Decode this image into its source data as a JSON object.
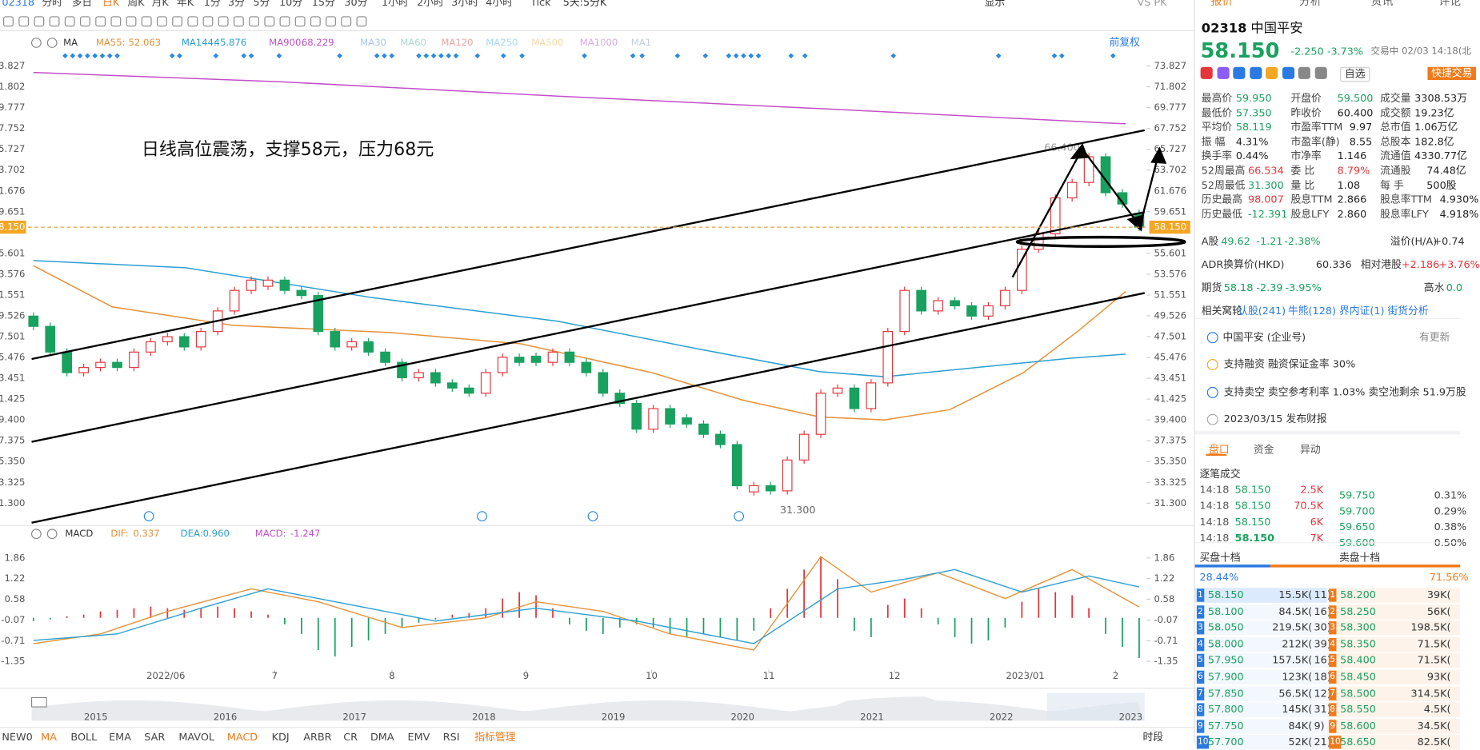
{
  "toolbar": {
    "code": "02318",
    "periods": [
      "分时",
      "多日",
      "日K",
      "周K",
      "月K",
      "年K",
      "1分",
      "3分",
      "5分",
      "10分",
      "15分",
      "30分",
      "1小时",
      "2小时",
      "3小时",
      "4小时",
      "Tick"
    ],
    "multi": "5天:5分K",
    "display": "显示",
    "vs": "VS PK"
  },
  "chart_legend": {
    "type": "MA",
    "restore": "前复权",
    "items": [
      {
        "name": "MA55:",
        "value": "52.063",
        "color": "#e5923a"
      },
      {
        "name": "MA144:",
        "value": "45.876",
        "color": "#2b9fd0"
      },
      {
        "name": "MA900:",
        "value": "68.229",
        "color": "#c150c8"
      },
      {
        "name": "MA30",
        "color": "#a9c4e8"
      },
      {
        "name": "MA60",
        "color": "#a9dcd0"
      },
      {
        "name": "MA120",
        "color": "#f0a0a0"
      },
      {
        "name": "MA250",
        "color": "#a8d8f0"
      },
      {
        "name": "MA500",
        "color": "#f5d8a0"
      },
      {
        "name": "MA1000",
        "color": "#d8a8e8"
      },
      {
        "name": "MA1",
        "color": "#c8d0dc"
      }
    ]
  },
  "chart_data": {
    "type": "candlestick",
    "annotation": "日线高位震荡，支撑58元，压力68元",
    "high_label": "66.400",
    "low_label": "31.300",
    "up_color": "#e5343a",
    "down_color": "#19a15f",
    "xlim": [
      -0.33,
      66.44
    ],
    "xticks": [
      {
        "value": 7.9,
        "label": "2022/06"
      },
      {
        "value": 14.4,
        "label": "7"
      },
      {
        "value": 21.4,
        "label": "8"
      },
      {
        "value": 29.4,
        "label": "9"
      },
      {
        "value": 36.9,
        "label": "10"
      },
      {
        "value": 43.9,
        "label": "11"
      },
      {
        "value": 51.4,
        "label": "12"
      },
      {
        "value": 59.2,
        "label": "2023/01"
      },
      {
        "value": 64.6,
        "label": "2"
      }
    ],
    "ylim": [
      29.58,
      74.82
    ],
    "yticks": [
      73.827,
      71.802,
      69.777,
      67.752,
      65.727,
      63.702,
      61.676,
      59.651,
      55.601,
      53.576,
      51.551,
      49.526,
      47.501,
      45.476,
      43.451,
      41.425,
      {
        "value": 39.4,
        "label": "39.400"
      },
      37.375,
      {
        "value": 35.35,
        "label": "35.350"
      },
      33.325,
      {
        "value": 31.3,
        "label": "31.300"
      }
    ],
    "last_price": {
      "value": 58.15,
      "label": "58.150"
    },
    "candles": {
      "open": [
        49.5,
        48.5,
        46,
        44,
        44.5,
        45,
        44.5,
        46,
        47,
        47.5,
        46.5,
        48,
        50,
        52,
        52.4,
        53,
        52,
        51.5,
        48,
        46.5,
        47,
        46,
        45,
        43.5,
        44,
        43,
        42.5,
        42,
        44,
        45.5,
        45.6,
        45,
        46,
        45,
        44,
        42,
        41,
        38.5,
        40.5,
        39.6,
        39,
        38,
        37,
        32.4,
        33,
        32.5,
        35.5,
        38,
        42,
        42.5,
        40.5,
        43,
        48,
        52,
        50,
        51,
        50.5,
        49.5,
        50.5,
        52,
        56,
        57.5,
        61,
        62.5,
        65,
        61.5,
        59.5
      ],
      "close": [
        48.5,
        46,
        44,
        44.5,
        45,
        44.5,
        46,
        47,
        47.5,
        46.5,
        48,
        50,
        52,
        53,
        53,
        52,
        51.5,
        48,
        46.5,
        47,
        46,
        45,
        43.5,
        44,
        43,
        42.5,
        42,
        44,
        45.5,
        45,
        45,
        46,
        45,
        44,
        42,
        41,
        38.5,
        40.5,
        39,
        39,
        38,
        37,
        33,
        33,
        32.5,
        35.5,
        38,
        42,
        42.5,
        40.5,
        43,
        48,
        52,
        50,
        51,
        50.5,
        49.5,
        50.5,
        52,
        56,
        57.5,
        61,
        62.5,
        65,
        61.5,
        60.4,
        58.15
      ]
    },
    "series": [
      {
        "color": "#e5923a",
        "x": [
          0,
          4.7,
          11.9,
          21.3,
          29.1,
          36.9,
          42.4,
          46.9,
          50.8,
          54.7,
          59.1,
          62.4,
          65.2
        ],
        "values": [
          54.4,
          50.4,
          48.6,
          47.9,
          46.8,
          44.0,
          41.3,
          39.7,
          39.4,
          40.4,
          44.0,
          48.1,
          51.9
        ]
      },
      {
        "color": "#2b9fd0",
        "x": [
          0,
          9.1,
          20.2,
          31.3,
          39.7,
          46.9,
          50.8,
          56.3,
          61.9,
          65.2
        ],
        "values": [
          54.9,
          54.2,
          51.3,
          49.0,
          46.3,
          44.1,
          43.6,
          44.5,
          45.4,
          45.8
        ]
      },
      {
        "color": "#c150c8",
        "x": [
          0,
          14.7,
          31.3,
          48,
          65.2
        ],
        "values": [
          73.2,
          72.3,
          70.9,
          69.6,
          68.2
        ]
      }
    ],
    "macd": {
      "name": "MACD",
      "legend": [
        {
          "name": "DIF:",
          "value": "0.337",
          "color": "#e5923a"
        },
        {
          "name": "DEA:",
          "value": "0.960",
          "color": "#2b9fd0"
        },
        {
          "name": "MACD:",
          "value": "-1.247",
          "color": "#c150c8"
        }
      ],
      "ylim": [
        -1.61,
        2.29
      ],
      "yticks": [
        1.86,
        1.22,
        0.58,
        -0.07,
        -0.71,
        -1.35
      ],
      "hist": [
        -0.1,
        -0.05,
        0.05,
        0.1,
        0.2,
        0.25,
        0.3,
        0.35,
        0.3,
        0.25,
        0.3,
        0.35,
        0.3,
        0.2,
        0.1,
        -0.2,
        -0.5,
        -1.0,
        -1.2,
        -0.9,
        -0.7,
        -0.5,
        -0.3,
        -0.15,
        -0.05,
        0.1,
        0.15,
        0.3,
        0.6,
        0.8,
        0.7,
        0.3,
        -0.2,
        -0.4,
        -0.5,
        -0.3,
        -0.2,
        -0.3,
        -0.5,
        -0.6,
        -0.5,
        -0.6,
        -0.7,
        -0.4,
        0.3,
        0.9,
        1.5,
        1.9,
        1.2,
        -0.4,
        -0.6,
        0.4,
        0.6,
        0.3,
        -0.2,
        -0.6,
        -0.8,
        -0.7,
        -0.3,
        0.5,
        0.9,
        0.8,
        0.7,
        0.3,
        -0.5,
        -0.9,
        -1.247
      ],
      "dif": {
        "color": "#e5923a",
        "x": [
          0,
          4,
          8,
          13,
          17,
          22,
          27,
          30,
          34,
          38,
          43,
          47,
          50,
          54,
          58,
          62,
          66
        ],
        "values": [
          -0.8,
          -0.5,
          0.2,
          0.9,
          0.5,
          -0.3,
          0,
          0.5,
          0.2,
          -0.5,
          -1.0,
          1.9,
          0.8,
          1.4,
          0.6,
          1.5,
          0.337
        ]
      },
      "dea": {
        "color": "#2b9fd0",
        "x": [
          0,
          5,
          10,
          14,
          19,
          24,
          30,
          36,
          43,
          48,
          52,
          55,
          59,
          63,
          66
        ],
        "values": [
          -0.7,
          -0.5,
          0.3,
          0.9,
          0.4,
          -0.1,
          0.3,
          -0.1,
          -0.8,
          0.9,
          1.2,
          1.5,
          0.8,
          1.3,
          0.96
        ]
      }
    }
  },
  "overview": {
    "years": [
      "2015",
      "2016",
      "2017",
      "2018",
      "2019",
      "2020",
      "2021",
      "2022",
      "2023"
    ]
  },
  "indicator_tabs": {
    "items": [
      "NEW0",
      "MA",
      "BOLL",
      "EMA",
      "SAR",
      "MAVOL",
      "MACD",
      "KDJ",
      "ARBR",
      "CR",
      "DMA",
      "EMV",
      "RSI",
      "指标管理"
    ],
    "period": "时段"
  },
  "quote": {
    "tabs": [
      "报价",
      "分析",
      "资讯",
      "评论"
    ],
    "code": "02318",
    "name": "中国平安",
    "price": "58.150",
    "change": "-2.250",
    "pct": "-3.73%",
    "status": "交易中 02/03 14:18(北",
    "watch": "自选",
    "trade": "快捷交易",
    "stats": [
      [
        {
          "label": "最高价",
          "value": "59.950",
          "color": "#19a15f"
        },
        {
          "label": "开盘价",
          "value": "59.500",
          "color": "#19a15f"
        },
        {
          "label": "成交量",
          "value": "3308.53万"
        }
      ],
      [
        {
          "label": "最低价",
          "value": "57.350",
          "color": "#19a15f"
        },
        {
          "label": "昨收价",
          "value": "60.400"
        },
        {
          "label": "成交额",
          "value": "19.23亿"
        }
      ],
      [
        {
          "label": "平均价",
          "value": "58.119",
          "color": "#19a15f"
        },
        {
          "label": "市盈率TTM",
          "value": "9.97"
        },
        {
          "label": "总市值",
          "value": "1.06万亿"
        }
      ],
      [
        {
          "label": "振 幅",
          "value": "4.31%"
        },
        {
          "label": "市盈率(静)",
          "value": "8.55"
        },
        {
          "label": "总股本",
          "value": "182.8亿"
        }
      ],
      [
        {
          "label": "换手率",
          "value": "0.44%"
        },
        {
          "label": "市净率",
          "value": "1.146"
        },
        {
          "label": "流通值",
          "value": "4330.77亿"
        }
      ],
      [
        {
          "label": "52周最高",
          "value": "66.534",
          "color": "#e5343a"
        },
        {
          "label": "委 比",
          "value": "8.79%",
          "color": "#e5343a"
        },
        {
          "label": "流通股",
          "value": "74.48亿"
        }
      ],
      [
        {
          "label": "52周最低",
          "value": "31.300",
          "color": "#19a15f"
        },
        {
          "label": "量 比",
          "value": "1.08"
        },
        {
          "label": "每 手",
          "value": "500股"
        }
      ],
      [
        {
          "label": "历史最高",
          "value": "98.007",
          "color": "#e5343a"
        },
        {
          "label": "股息TTM",
          "value": "2.866"
        },
        {
          "label": "股息率TTM",
          "value": "4.930%"
        }
      ],
      [
        {
          "label": "历史最低",
          "value": "-12.391",
          "color": "#19a15f"
        },
        {
          "label": "股息LFY",
          "value": "2.860"
        },
        {
          "label": "股息率LFY",
          "value": "4.918%"
        }
      ]
    ],
    "a_share": {
      "label": "A股",
      "price": "49.62",
      "change": "-1.21",
      "pct": "-2.38%",
      "premium_label": "溢价(H/A)",
      "premium": "+0.74"
    },
    "adr": {
      "label": "ADR换算价(HKD)",
      "value": "60.336",
      "rel_label": "相对港股",
      "rel": "+2.186",
      "rel_pct": "+3.76%"
    },
    "futures": {
      "label": "期货",
      "price": "58.18",
      "change": "-2.39",
      "pct": "-3.95%",
      "basis_label": "高水",
      "basis": "0.0"
    },
    "warrants": {
      "label": "相关窝轮",
      "items": [
        "认股(241)",
        "牛熊(128)",
        "界内证(1)",
        "街货分析"
      ]
    },
    "company": "中国平安 (企业号)",
    "company_update": "有更新",
    "margin": "支持融资 融资保证金率 30%",
    "short": "支持卖空 卖空参考利率 1.03% 卖空池剩余 51.9万股",
    "report": "2023/03/15 发布财报",
    "tabs2": [
      "盘口",
      "资金",
      "异动"
    ],
    "ticks_title": "逐笔成交",
    "trades": [
      [
        "14:18",
        "58.150",
        "2.5K"
      ],
      [
        "14:18",
        "58.150",
        "70.5K"
      ],
      [
        "14:18",
        "58.150",
        "6K"
      ],
      [
        "14:18",
        "58.150",
        "7K"
      ]
    ],
    "ladder": [
      [
        "59.750",
        "0.31%"
      ],
      [
        "59.700",
        "0.29%"
      ],
      [
        "59.650",
        "0.38%"
      ],
      [
        "59.600",
        "0.50%"
      ]
    ],
    "bid_title": "买盘十档",
    "ask_title": "卖盘十档",
    "bid_ratio": {
      "value": 28.44,
      "label": "28.44%"
    },
    "ask_ratio": {
      "value": 71.56,
      "label": "71.56%"
    },
    "bids": [
      [
        "1",
        "58.150",
        "15.5K(",
        "11)"
      ],
      [
        "2",
        "58.100",
        "84.5K(",
        "16)"
      ],
      [
        "3",
        "58.050",
        "219.5K(",
        "30)"
      ],
      [
        "4",
        "58.000",
        "212K(",
        "39)"
      ],
      [
        "5",
        "57.950",
        "157.5K(",
        "16)"
      ],
      [
        "6",
        "57.900",
        "123K(",
        "18)"
      ],
      [
        "7",
        "57.850",
        "56.5K(",
        "12)"
      ],
      [
        "8",
        "57.800",
        "145K(",
        "31)"
      ],
      [
        "9",
        "57.750",
        "84K(",
        "9)"
      ],
      [
        "10",
        "57.700",
        "52K(",
        "21)"
      ]
    ],
    "asks": [
      [
        "1",
        "58.200",
        "39K("
      ],
      [
        "2",
        "58.250",
        "56K("
      ],
      [
        "3",
        "58.300",
        "198.5K("
      ],
      [
        "4",
        "58.350",
        "71.5K("
      ],
      [
        "5",
        "58.400",
        "71.5K("
      ],
      [
        "6",
        "58.450",
        "93K("
      ],
      [
        "7",
        "58.500",
        "314.5K("
      ],
      [
        "8",
        "58.550",
        "4.5K("
      ],
      [
        "9",
        "58.600",
        "34.5K("
      ],
      [
        "10",
        "58.650",
        "82.5K("
      ]
    ]
  }
}
